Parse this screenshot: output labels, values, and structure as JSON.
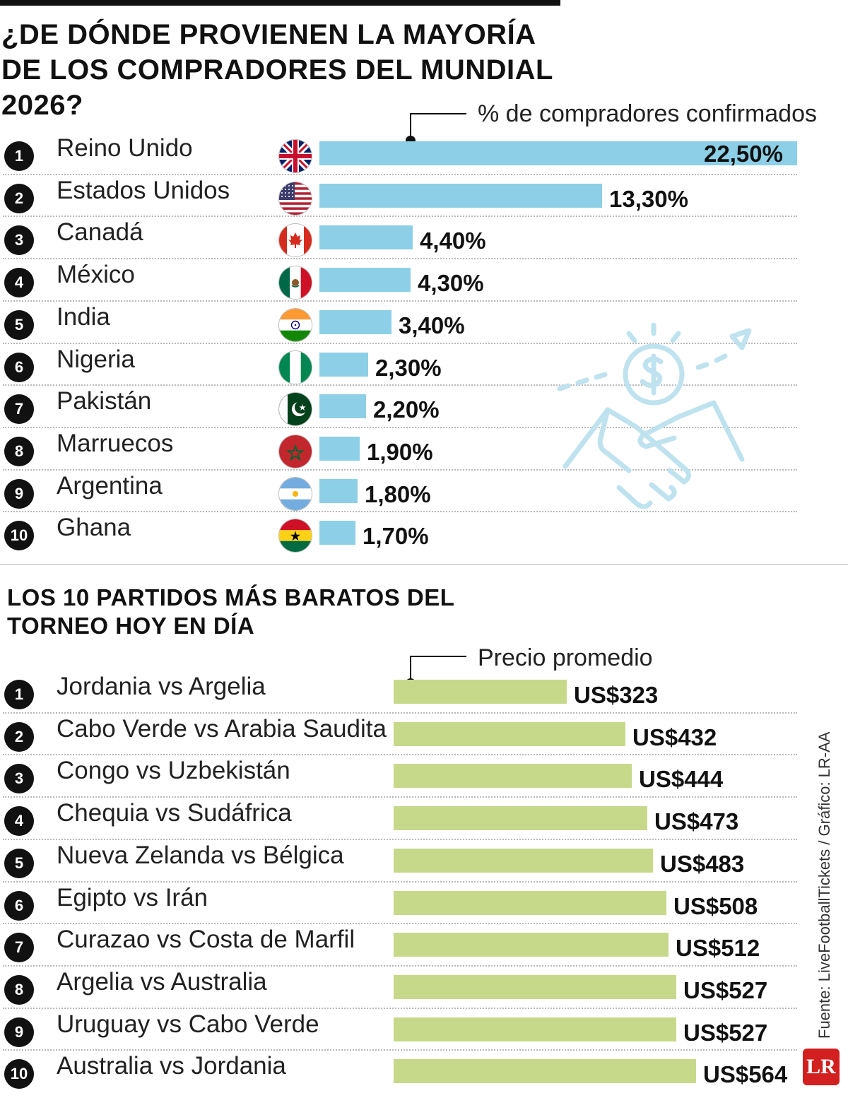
{
  "title": "¿DE DÓNDE PROVIENEN LA MAYORÍA DE LOS COMPRADORES DEL MUNDIAL 2026?",
  "subtitle": "LOS 10 PARTIDOS MÁS BARATOS DEL TORNEO HOY EN DÍA",
  "source": "Fuente: LiveFootballTickets / Gráfico: LR-AA",
  "logo": "LR",
  "chart_data": [
    {
      "type": "bar",
      "orientation": "horizontal",
      "title": "¿DE DÓNDE PROVIENEN LA MAYORÍA DE LOS COMPRADORES DEL MUNDIAL 2026?",
      "legend": "% de compradores confirmados",
      "color": "#8ccfe6",
      "ranks": [
        "1",
        "2",
        "3",
        "4",
        "5",
        "6",
        "7",
        "8",
        "9",
        "10"
      ],
      "categories": [
        "Reino Unido",
        "Estados Unidos",
        "Canadá",
        "México",
        "India",
        "Nigeria",
        "Pakistán",
        "Marruecos",
        "Argentina",
        "Ghana"
      ],
      "values": [
        22.5,
        13.3,
        4.4,
        4.3,
        3.4,
        2.3,
        2.2,
        1.9,
        1.8,
        1.7
      ],
      "value_labels": [
        "22,50%",
        "13,30%",
        "4,40%",
        "4,30%",
        "3,40%",
        "2,30%",
        "2,20%",
        "1,90%",
        "1,80%",
        "1,70%"
      ],
      "flags": [
        "uk-flag-icon",
        "usa-flag-icon",
        "canada-flag-icon",
        "mexico-flag-icon",
        "india-flag-icon",
        "nigeria-flag-icon",
        "pakistan-flag-icon",
        "morocco-flag-icon",
        "argentina-flag-icon",
        "ghana-flag-icon"
      ]
    },
    {
      "type": "bar",
      "orientation": "horizontal",
      "title": "LOS 10 PARTIDOS MÁS BARATOS DEL TORNEO HOY EN DÍA",
      "legend": "Precio promedio",
      "color": "#c6d98a",
      "ranks": [
        "1",
        "2",
        "3",
        "4",
        "5",
        "6",
        "7",
        "8",
        "9",
        "10"
      ],
      "categories": [
        "Jordania vs Argelia",
        "Cabo Verde vs Arabia Saudita",
        "Congo vs Uzbekistán",
        "Chequia vs Sudáfrica",
        "Nueva Zelanda vs Bélgica",
        "Egipto vs Irán",
        "Curazao vs Costa de Marfil",
        "Argelia vs Australia",
        "Uruguay vs Cabo Verde",
        "Australia vs Jordania"
      ],
      "values": [
        323,
        432,
        444,
        473,
        483,
        508,
        512,
        527,
        527,
        564
      ],
      "value_labels": [
        "US$323",
        "US$432",
        "US$444",
        "US$473",
        "US$483",
        "US$508",
        "US$512",
        "US$527",
        "US$527",
        "US$564"
      ]
    }
  ]
}
